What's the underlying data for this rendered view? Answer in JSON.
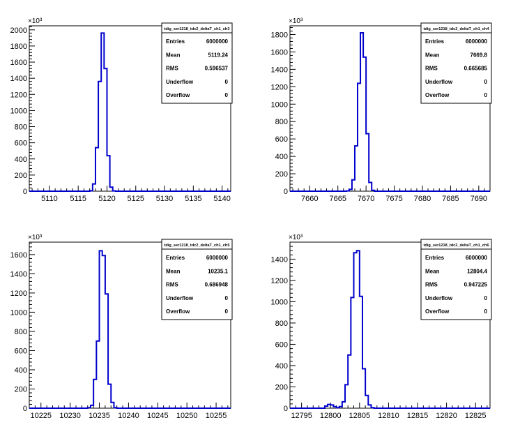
{
  "colors": {
    "histogram": "#0000cc",
    "frame": "#000000",
    "background": "#ffffff"
  },
  "chart_data": [
    {
      "type": "histogram",
      "title": "tdig_ser1218_tdc2_deltaT_ch1_ch3",
      "y_multiplier": "×10³",
      "xlim": [
        5106.5,
        5141.5
      ],
      "ylim": [
        0,
        2050
      ],
      "x_ticks": [
        5110,
        5115,
        5120,
        5125,
        5130,
        5135,
        5140
      ],
      "y_ticks": [
        0,
        200,
        400,
        600,
        800,
        1000,
        1200,
        1400,
        1600,
        1800,
        2000
      ],
      "bins": [
        [
          5116.5,
          0
        ],
        [
          5117.0,
          5
        ],
        [
          5117.5,
          90
        ],
        [
          5118.0,
          540
        ],
        [
          5118.5,
          1360
        ],
        [
          5119.0,
          1960
        ],
        [
          5119.5,
          1520
        ],
        [
          5120.0,
          440
        ],
        [
          5120.5,
          50
        ],
        [
          5121.0,
          3
        ]
      ],
      "stats": [
        [
          "Entries",
          "6000000"
        ],
        [
          "Mean",
          "5119.24"
        ],
        [
          "RMS",
          "0.596537"
        ],
        [
          "Underflow",
          "0"
        ],
        [
          "Overflow",
          "0"
        ]
      ]
    },
    {
      "type": "histogram",
      "title": "tdig_ser1218_tdc2_deltaT_ch1_ch4",
      "y_multiplier": "×10³",
      "xlim": [
        7656.5,
        7692
      ],
      "ylim": [
        0,
        1900
      ],
      "x_ticks": [
        7660,
        7665,
        7670,
        7675,
        7680,
        7685,
        7690
      ],
      "y_ticks": [
        0,
        200,
        400,
        600,
        800,
        1000,
        1200,
        1400,
        1600,
        1800
      ],
      "bins": [
        [
          7666.5,
          3
        ],
        [
          7667.0,
          20
        ],
        [
          7667.5,
          130
        ],
        [
          7668.0,
          520
        ],
        [
          7668.5,
          1240
        ],
        [
          7669.0,
          1820
        ],
        [
          7669.5,
          1540
        ],
        [
          7670.0,
          660
        ],
        [
          7670.5,
          100
        ],
        [
          7671.0,
          10
        ]
      ],
      "stats": [
        [
          "Entries",
          "6000000"
        ],
        [
          "Mean",
          "7669.8"
        ],
        [
          "RMS",
          "0.665685"
        ],
        [
          "Underflow",
          "0"
        ],
        [
          "Overflow",
          "0"
        ]
      ]
    },
    {
      "type": "histogram",
      "title": "tdig_ser1218_tdc2_deltaT_ch1_ch5",
      "y_multiplier": "×10³",
      "xlim": [
        10223,
        10257.5
      ],
      "ylim": [
        0,
        1730
      ],
      "x_ticks": [
        10225,
        10230,
        10235,
        10240,
        10245,
        10250,
        10255
      ],
      "y_ticks": [
        0,
        200,
        400,
        600,
        800,
        1000,
        1200,
        1400,
        1600
      ],
      "bins": [
        [
          10233.0,
          5
        ],
        [
          10233.5,
          30
        ],
        [
          10234.0,
          300
        ],
        [
          10234.5,
          700
        ],
        [
          10235.0,
          1640
        ],
        [
          10235.5,
          1590
        ],
        [
          10236.0,
          1190
        ],
        [
          10236.5,
          250
        ],
        [
          10237.0,
          60
        ],
        [
          10237.5,
          5
        ]
      ],
      "stats": [
        [
          "Entries",
          "6000000"
        ],
        [
          "Mean",
          "10235.1"
        ],
        [
          "RMS",
          "0.686948"
        ],
        [
          "Underflow",
          "0"
        ],
        [
          "Overflow",
          "0"
        ]
      ]
    },
    {
      "type": "histogram",
      "title": "tdig_ser1218_tdc2_deltaT_ch1_ch6",
      "y_multiplier": "×10³",
      "xlim": [
        12793,
        12827.5
      ],
      "ylim": [
        0,
        1560
      ],
      "x_ticks": [
        12795,
        12800,
        12805,
        12810,
        12815,
        12820,
        12825
      ],
      "y_ticks": [
        0,
        200,
        400,
        600,
        800,
        1000,
        1200,
        1400
      ],
      "bins": [
        [
          12799.0,
          20
        ],
        [
          12799.5,
          35
        ],
        [
          12800.0,
          30
        ],
        [
          12800.5,
          15
        ],
        [
          12801.0,
          5
        ],
        [
          12801.5,
          15
        ],
        [
          12802.0,
          60
        ],
        [
          12802.5,
          220
        ],
        [
          12803.0,
          500
        ],
        [
          12803.5,
          1040
        ],
        [
          12804.0,
          1460
        ],
        [
          12804.5,
          1480
        ],
        [
          12805.0,
          1050
        ],
        [
          12805.5,
          370
        ],
        [
          12806.0,
          120
        ],
        [
          12806.5,
          30
        ],
        [
          12807.0,
          5
        ]
      ],
      "stats": [
        [
          "Entries",
          "6000000"
        ],
        [
          "Mean",
          "12804.4"
        ],
        [
          "RMS",
          "0.947225"
        ],
        [
          "Underflow",
          "0"
        ],
        [
          "Overflow",
          "0"
        ]
      ]
    }
  ]
}
